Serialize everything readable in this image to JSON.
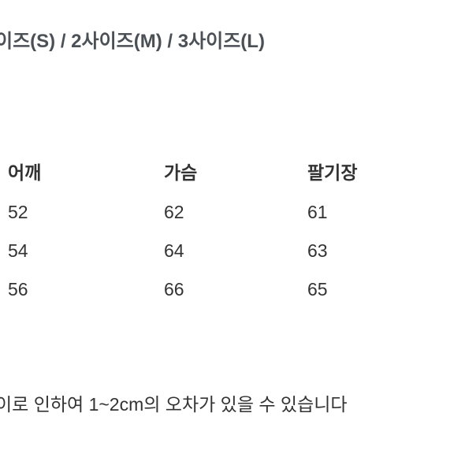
{
  "header_text": "이즈(S) / 2사이즈(M) / 3사이즈(L)",
  "table": {
    "columns": [
      "어깨",
      "가슴",
      "팔기장"
    ],
    "rows": [
      [
        "52",
        "62",
        "61"
      ],
      [
        "54",
        "64",
        "63"
      ],
      [
        "56",
        "66",
        "65"
      ]
    ],
    "header_color": "#333333",
    "data_color": "#333333",
    "header_fontsize": 23,
    "data_fontsize": 23,
    "background_color": "#ffffff"
  },
  "footer_text": "이로 인하여 1~2cm의 오차가 있을 수 있습니다",
  "colors": {
    "header_text_color": "#4a5056",
    "body_text_color": "#333333",
    "background": "#ffffff"
  }
}
